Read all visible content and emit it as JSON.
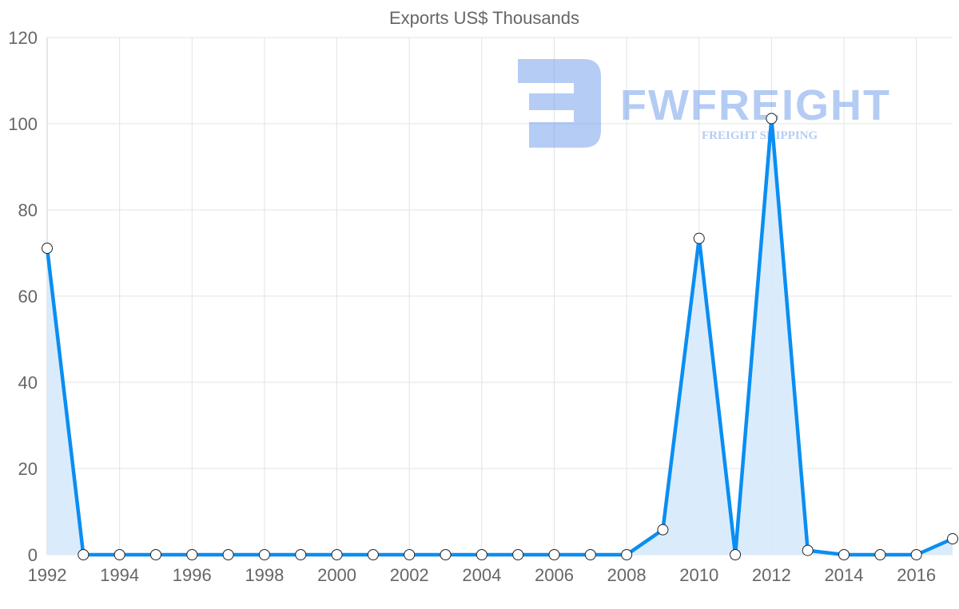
{
  "watermark": {
    "brand": "FWFREIGHT",
    "tagline": "FREIGHT SHIPPING"
  },
  "colors": {
    "line": "#0a8ef2",
    "fill": "#d6eafc",
    "grid": "#e3e3e3",
    "text": "#666666",
    "watermark": "#5b8fe8"
  },
  "chart_data": {
    "type": "line",
    "title": "Exports US$ Thousands",
    "xlabel": "",
    "ylabel": "",
    "x": [
      1992,
      1993,
      1994,
      1995,
      1996,
      1997,
      1998,
      1999,
      2000,
      2001,
      2002,
      2003,
      2004,
      2005,
      2006,
      2007,
      2008,
      2009,
      2010,
      2011,
      2012,
      2013,
      2014,
      2015,
      2016,
      2017
    ],
    "series": [
      {
        "name": "Exports US$ Thousands",
        "values": [
          71.1,
          0,
          0,
          0,
          0,
          0,
          0,
          0,
          0,
          0,
          0,
          0,
          0,
          0,
          0,
          0,
          0,
          5.8,
          73.4,
          0,
          101.2,
          1.0,
          0,
          0,
          0,
          3.7
        ]
      }
    ],
    "xlim": [
      1992,
      2017
    ],
    "ylim": [
      0,
      120
    ],
    "x_ticks": [
      "1992",
      "1994",
      "1996",
      "1998",
      "2000",
      "2002",
      "2004",
      "2006",
      "2008",
      "2010",
      "2012",
      "2014",
      "2016"
    ],
    "y_ticks": [
      "0",
      "20",
      "40",
      "60",
      "80",
      "100",
      "120"
    ],
    "grid": true,
    "legend": "none"
  }
}
